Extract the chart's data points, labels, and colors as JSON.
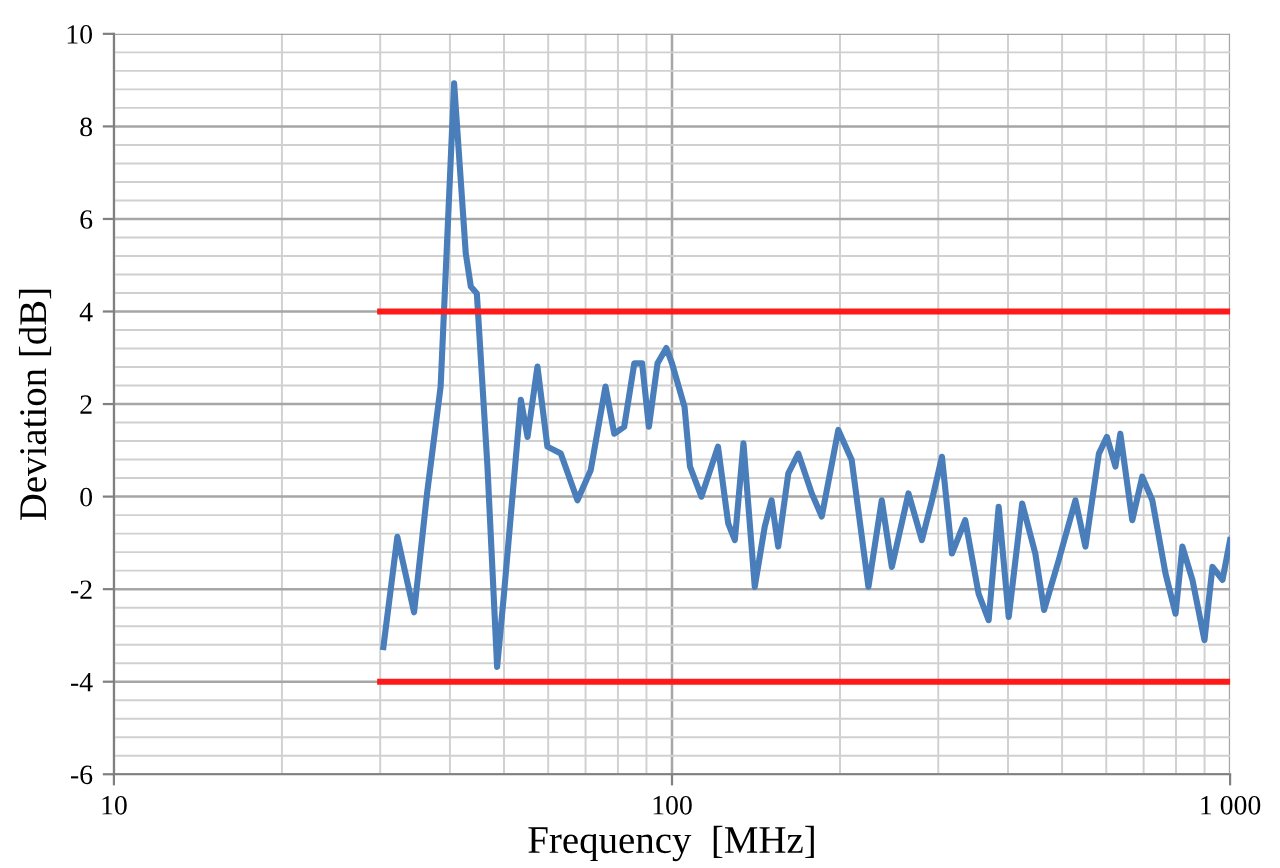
{
  "chart_data": {
    "type": "line",
    "xlabel": "Frequency  [MHz]",
    "ylabel": "Deviation [dB]",
    "log": "x",
    "grid": true,
    "xlim": [
      10,
      1000
    ],
    "xticks": [
      10,
      100,
      {
        "value": 1000,
        "label": "1 000"
      }
    ],
    "ylim": [
      -6,
      10
    ],
    "yticks": [
      -6,
      -4,
      -2,
      0,
      2,
      4,
      6,
      8,
      10
    ],
    "series": [
      {
        "color": "#4a7ebb",
        "x": [
          30.4,
          32.2,
          34.5,
          36.4,
          38.5,
          40.7,
          42.7,
          43.6,
          44.7,
          46.7,
          48.6,
          50.0,
          53.6,
          55.1,
          57.4,
          59.8,
          63.2,
          67.7,
          71.5,
          76.0,
          78.8,
          82.1,
          85.6,
          88.4,
          90.9,
          94.2,
          97.7,
          100,
          105.3,
          107.7,
          112.9,
          120.9,
          126.1,
          129.6,
          134.3,
          140.7,
          146.6,
          150.8,
          155.0,
          161.6,
          168.4,
          178.0,
          185.5,
          198.6,
          209.9,
          224.9,
          237.6,
          247.7,
          265.3,
          280.4,
          292.3,
          304.6,
          317.4,
          335.3,
          354.3,
          369.3,
          384.9,
          401.2,
          424.1,
          447.7,
          464.3,
          493.2,
          528.3,
          550.6,
          582,
          601.5,
          623.1,
          635.8,
          667.9,
          696,
          725.5,
          766.1,
          798.5,
          821.4,
          856.1,
          899.7,
          929.9,
          969.2,
          1000
        ],
        "values": [
          -3.25,
          -0.87,
          -2.5,
          0.07,
          2.38,
          8.93,
          5.26,
          4.54,
          4.39,
          0.65,
          -3.68,
          -2.1,
          2.09,
          1.29,
          2.81,
          1.08,
          0.93,
          -0.08,
          0.57,
          2.38,
          1.36,
          1.51,
          2.88,
          2.88,
          1.51,
          2.88,
          3.21,
          2.88,
          1.94,
          0.65,
          0.0,
          1.08,
          -0.58,
          -0.94,
          1.15,
          -1.95,
          -0.65,
          -0.08,
          -1.08,
          0.5,
          0.93,
          0.07,
          -0.43,
          1.44,
          0.79,
          -1.95,
          -0.08,
          -1.52,
          0.07,
          -0.94,
          -0.08,
          0.86,
          -1.23,
          -0.51,
          -2.1,
          -2.67,
          -0.22,
          -2.6,
          -0.15,
          -1.23,
          -2.45,
          -1.37,
          -0.08,
          -1.08,
          0.93,
          1.29,
          0.65,
          1.36,
          -0.51,
          0.43,
          -0.08,
          -1.66,
          -2.53,
          -1.08,
          -1.8,
          -3.1,
          -1.52,
          -1.8,
          -0.94
        ]
      },
      {
        "color": "#ff1a1a",
        "x": [
          30,
          1000
        ],
        "values": [
          4,
          4
        ]
      },
      {
        "color": "#ff1a1a",
        "x": [
          30,
          1000
        ],
        "values": [
          -4,
          -4
        ]
      }
    ]
  }
}
